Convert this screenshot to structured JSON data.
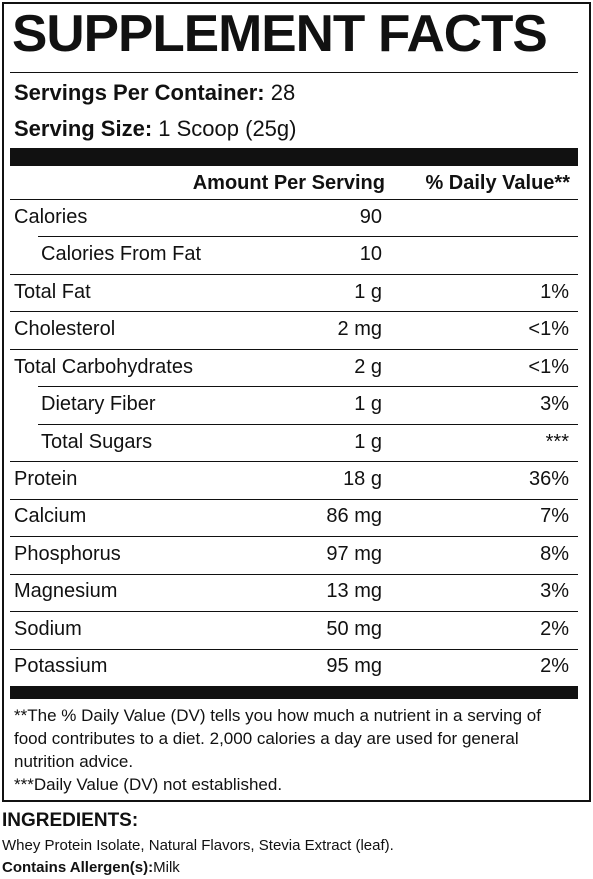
{
  "title": "SUPPLEMENT FACTS",
  "servings": {
    "label": "Servings Per Container:",
    "value": "28"
  },
  "serving_size": {
    "label": "Serving Size:",
    "value": "1 Scoop (25g)"
  },
  "table": {
    "header": {
      "amount": "Amount Per Serving",
      "dv": "% Daily Value**"
    },
    "rows": [
      {
        "label": "Calories",
        "amount": "90",
        "sub": [
          {
            "label": "Calories From Fat",
            "amount": "10"
          }
        ]
      },
      {
        "label": "Total Fat",
        "amount": "1 g",
        "dv": "1%"
      },
      {
        "label": "Cholesterol",
        "amount": "2 mg",
        "dv": "<1%"
      },
      {
        "label": "Total Carbohydrates",
        "amount": "2 g",
        "dv": "<1%",
        "sub": [
          {
            "label": "Dietary Fiber",
            "amount": "1 g",
            "dv": "3%"
          },
          {
            "label": "Total Sugars",
            "amount": "1 g",
            "dv": "***"
          }
        ]
      },
      {
        "label": "Protein",
        "amount": "18 g",
        "dv": "36%"
      },
      {
        "label": "Calcium",
        "amount": "86 mg",
        "dv": "7%"
      },
      {
        "label": "Phosphorus",
        "amount": "97 mg",
        "dv": "8%"
      },
      {
        "label": "Magnesium",
        "amount": "13 mg",
        "dv": "3%"
      },
      {
        "label": "Sodium",
        "amount": "50 mg",
        "dv": "2%"
      },
      {
        "label": "Potassium",
        "amount": "95 mg",
        "dv": "2%"
      }
    ]
  },
  "footnotes": [
    "**The % Daily Value (DV) tells you how much a nutrient in a serving of food contributes to a diet. 2,000 calories a day are used for general nutrition advice.",
    "***Daily Value (DV) not established."
  ],
  "ingredients": {
    "title": "INGREDIENTS:",
    "text": "Whey Protein Isolate, Natural Flavors, Stevia Extract (leaf).",
    "allergen_label": "Contains Allergen(s):",
    "allergen_value": "Milk"
  }
}
